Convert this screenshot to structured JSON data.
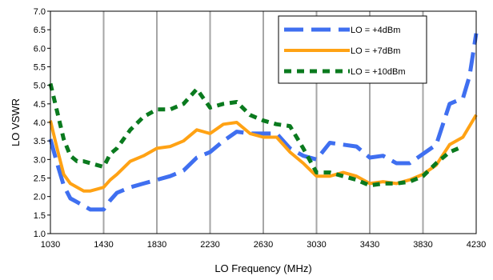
{
  "chart_data": {
    "type": "line",
    "title": "",
    "xlabel": "LO Frequency (MHz)",
    "ylabel": "LO VSWR",
    "xlim": [
      1030,
      4230
    ],
    "ylim": [
      1.0,
      7.0
    ],
    "x_ticks": [
      1030,
      1430,
      1830,
      2230,
      2630,
      3030,
      3430,
      3830,
      4230
    ],
    "x_tick_labels": [
      "1030",
      "1430",
      "1830",
      "2230",
      "2630",
      "3030",
      "3430",
      "3830",
      "4230"
    ],
    "y_ticks": [
      1.0,
      1.5,
      2.0,
      2.5,
      3.0,
      3.5,
      4.0,
      4.5,
      5.0,
      5.5,
      6.0,
      6.5,
      7.0
    ],
    "y_tick_labels": [
      "1.0",
      "1.5",
      "2.0",
      "2.5",
      "3.0",
      "3.5",
      "4.0",
      "4.5",
      "5.0",
      "5.5",
      "6.0",
      "6.5",
      "7.0"
    ],
    "grid": "vertical",
    "legend_position": "top-right",
    "series": [
      {
        "name": "LO = +4dBm",
        "color": "#3f6ff0",
        "style": "long-dash",
        "x": [
          1030,
          1080,
          1130,
          1180,
          1230,
          1280,
          1330,
          1380,
          1430,
          1480,
          1530,
          1630,
          1730,
          1830,
          1930,
          2030,
          2130,
          2230,
          2330,
          2430,
          2530,
          2630,
          2730,
          2830,
          2930,
          3030,
          3130,
          3230,
          3330,
          3430,
          3530,
          3630,
          3730,
          3830,
          3930,
          4030,
          4130,
          4180,
          4230
        ],
        "y": [
          3.55,
          2.9,
          2.3,
          1.95,
          1.85,
          1.75,
          1.65,
          1.65,
          1.65,
          1.9,
          2.1,
          2.25,
          2.35,
          2.45,
          2.55,
          2.7,
          3.05,
          3.2,
          3.5,
          3.75,
          3.7,
          3.7,
          3.7,
          3.3,
          3.1,
          3.0,
          3.45,
          3.4,
          3.35,
          3.05,
          3.1,
          2.9,
          2.9,
          3.15,
          3.4,
          4.5,
          4.65,
          5.25,
          6.4
        ]
      },
      {
        "name": "LO = +7dBm",
        "color": "#ffa214",
        "style": "solid",
        "x": [
          1030,
          1080,
          1130,
          1180,
          1230,
          1280,
          1330,
          1380,
          1430,
          1480,
          1530,
          1630,
          1730,
          1830,
          1930,
          2030,
          2130,
          2230,
          2330,
          2430,
          2530,
          2630,
          2730,
          2830,
          2930,
          3030,
          3130,
          3230,
          3330,
          3430,
          3530,
          3630,
          3730,
          3830,
          3930,
          4030,
          4130,
          4230
        ],
        "y": [
          4.05,
          3.3,
          2.6,
          2.35,
          2.25,
          2.15,
          2.15,
          2.2,
          2.25,
          2.45,
          2.6,
          2.95,
          3.1,
          3.3,
          3.35,
          3.5,
          3.8,
          3.7,
          3.95,
          4.0,
          3.7,
          3.6,
          3.6,
          3.2,
          2.9,
          2.55,
          2.55,
          2.65,
          2.55,
          2.35,
          2.4,
          2.35,
          2.45,
          2.6,
          2.85,
          3.4,
          3.6,
          4.2
        ]
      },
      {
        "name": "LO = +10dBm",
        "color": "#0a7a1e",
        "style": "dashed",
        "x": [
          1030,
          1080,
          1130,
          1180,
          1230,
          1280,
          1330,
          1380,
          1430,
          1480,
          1530,
          1630,
          1730,
          1830,
          1930,
          2030,
          2130,
          2230,
          2330,
          2430,
          2530,
          2630,
          2730,
          2830,
          2930,
          3030,
          3130,
          3230,
          3330,
          3430,
          3530,
          3630,
          3730,
          3830,
          3930,
          4030,
          4130
        ],
        "y": [
          5.05,
          4.3,
          3.55,
          3.1,
          2.95,
          2.95,
          2.9,
          2.85,
          2.8,
          3.15,
          3.3,
          3.8,
          4.15,
          4.35,
          4.35,
          4.5,
          4.9,
          4.4,
          4.5,
          4.55,
          4.2,
          4.05,
          3.95,
          3.9,
          3.3,
          2.65,
          2.65,
          2.55,
          2.45,
          2.3,
          2.35,
          2.35,
          2.4,
          2.55,
          2.9,
          3.2,
          3.35
        ]
      }
    ]
  }
}
